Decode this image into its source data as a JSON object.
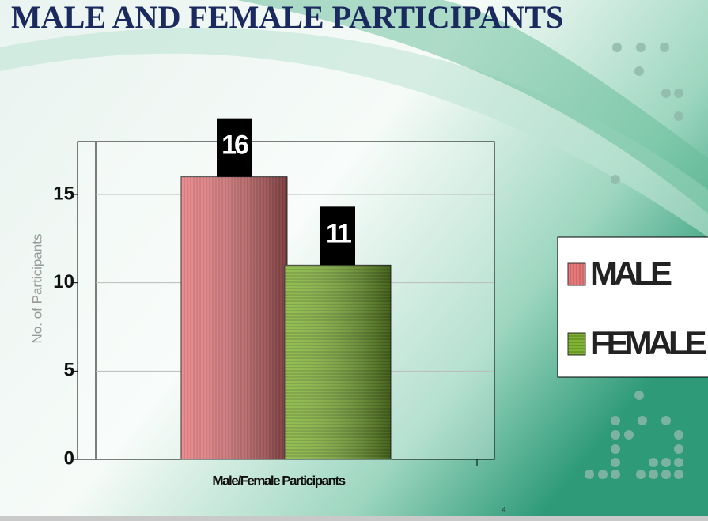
{
  "chart_data": {
    "type": "bar",
    "title": "MALE AND FEMALE PARTICIPANTS",
    "x_label": "Male/Female Participants",
    "y_label": "No. of Participants",
    "series": [
      {
        "name": "MALE",
        "color": "#e8777a",
        "values": [
          16
        ]
      },
      {
        "name": "FEMALE",
        "color": "#7fb332",
        "values": [
          11
        ]
      }
    ],
    "ylim": [
      0,
      18
    ],
    "yticks": [
      0,
      5,
      10,
      15
    ],
    "grid": true,
    "legend": "right"
  },
  "slide": {
    "page_number": "4"
  }
}
